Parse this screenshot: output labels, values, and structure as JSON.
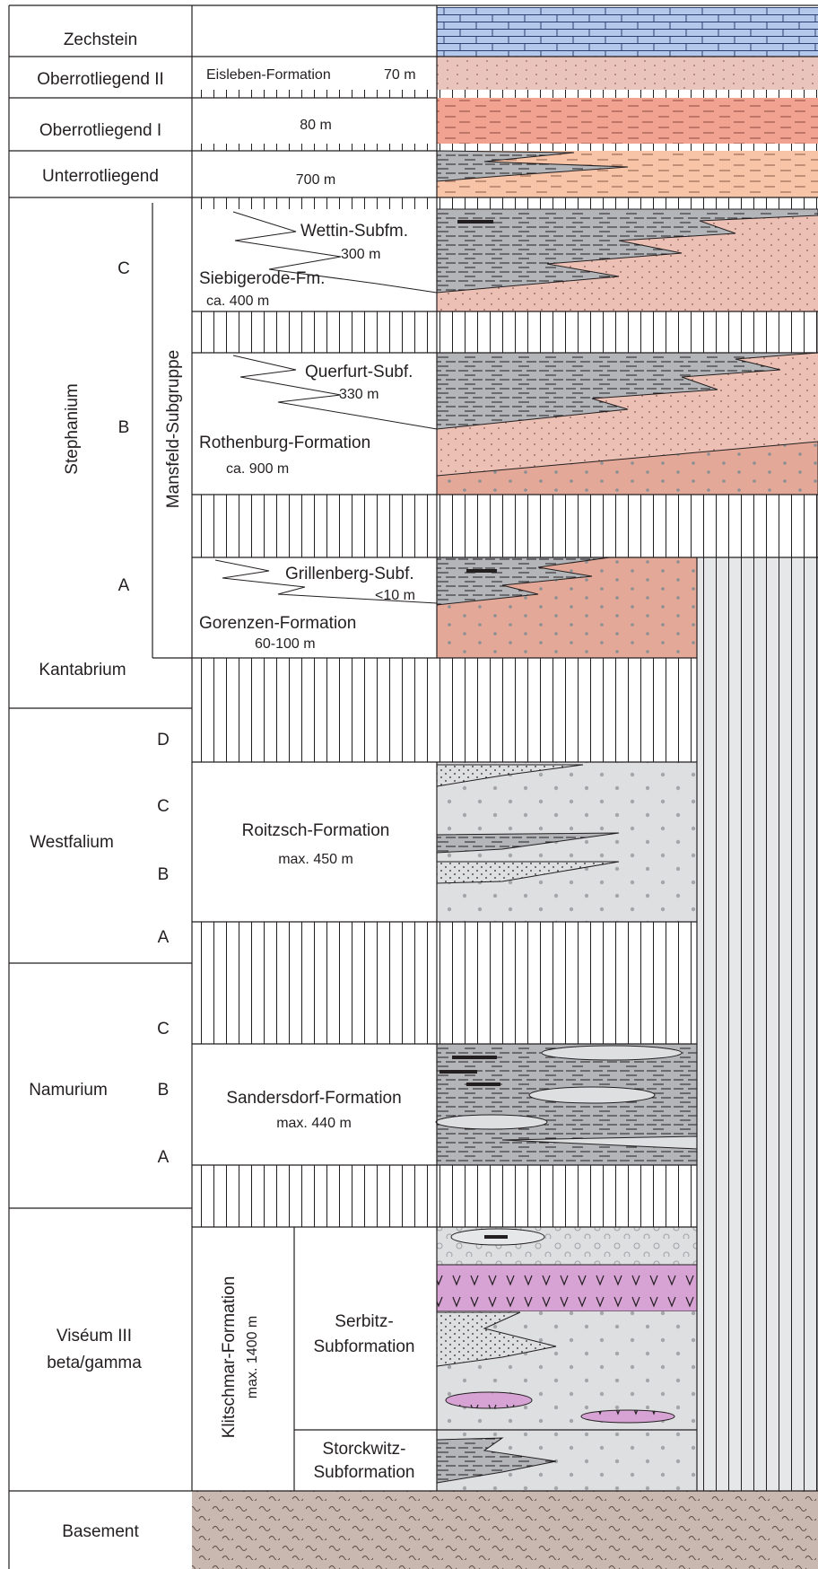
{
  "epochs": {
    "zechstein": "Zechstein",
    "oberrotliegend_2": "Oberrotliegend II",
    "oberrotliegend_1": "Oberrotliegend I",
    "unterrotliegend": "Unterrotliegend",
    "stephanium": "Stephanium",
    "kantabrium": "Kantabrium",
    "westfalium": "Westfalium",
    "namurium": "Namurium",
    "viseum_line1": "Viséum III",
    "viseum_line2": "beta/gamma",
    "basement": "Basement"
  },
  "stages": {
    "steph_c": "C",
    "steph_b": "B",
    "steph_a": "A",
    "west_d": "D",
    "west_c": "C",
    "west_b": "B",
    "west_a": "A",
    "nam_c": "C",
    "nam_b": "B",
    "nam_a": "A"
  },
  "groups": {
    "mansfeld": "Mansfeld-Subgruppe"
  },
  "formations": {
    "eisleben": "Eisleben-Formation",
    "eisleben_thickness": "70 m",
    "ober1_thickness": "80 m",
    "unter_thickness": "700 m",
    "wettin": "Wettin-Subfm.",
    "wettin_thickness": "300 m",
    "siebigerode": "Siebigerode-Fm.",
    "siebigerode_thickness": "ca. 400 m",
    "querfurt": "Querfurt-Subf.",
    "querfurt_thickness": "330 m",
    "rothenburg": "Rothenburg-Formation",
    "rothenburg_thickness": "ca. 900 m",
    "grillenberg": "Grillenberg-Subf.",
    "grillenberg_thickness": "<10 m",
    "gorenzen": "Gorenzen-Formation",
    "gorenzen_thickness": "60-100 m",
    "roitzsch": "Roitzsch-Formation",
    "roitzsch_thickness": "max. 450 m",
    "sandersdorf": "Sandersdorf-Formation",
    "sandersdorf_thickness": "max. 440 m",
    "klitschmar": "Klitschmar-Formation",
    "klitschmar_thickness": "max. 1400 m",
    "serbitz_line1": "Serbitz-",
    "serbitz_line2": "Subformation",
    "storckwitz_line1": "Storckwitz-",
    "storckwitz_line2": "Subformation"
  },
  "colors": {
    "zechstein_limestone": "#b4c8ec",
    "eisleben": "#e8c4bc",
    "ober1": "#f2a290",
    "unter": "#f7c4a8",
    "steph_upper": "#ecc0b4",
    "steph_lower": "#e4a898",
    "grey_pale": "#dedfe1",
    "grey_mid": "#b3b5b8",
    "grey_dark": "#9fa1a4",
    "volcanic": "#d6a3d4",
    "basement": "#c8b8b0"
  }
}
